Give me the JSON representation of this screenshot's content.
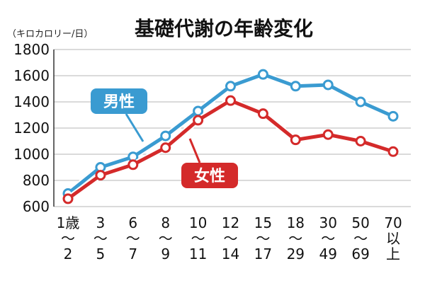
{
  "chart_data": {
    "type": "line",
    "title": "基礎代謝の年齢変化",
    "unit_label": "（キロカロリー/日）",
    "ylim": [
      600,
      1800
    ],
    "yticks": [
      600,
      800,
      1000,
      1200,
      1400,
      1600,
      1800
    ],
    "grid": true,
    "categories": [
      [
        "1歳",
        "〜",
        "2"
      ],
      [
        "3",
        "〜",
        "5"
      ],
      [
        "6",
        "〜",
        "7"
      ],
      [
        "8",
        "〜",
        "9"
      ],
      [
        "10",
        "〜",
        "11"
      ],
      [
        "12",
        "〜",
        "14"
      ],
      [
        "15",
        "〜",
        "17"
      ],
      [
        "18",
        "〜",
        "29"
      ],
      [
        "30",
        "〜",
        "49"
      ],
      [
        "50",
        "〜",
        "69"
      ],
      [
        "70",
        "以",
        "上"
      ]
    ],
    "series": [
      {
        "name": "男性",
        "color": "#3a9bd1",
        "values": [
          700,
          900,
          980,
          1140,
          1330,
          1520,
          1610,
          1520,
          1530,
          1400,
          1290
        ]
      },
      {
        "name": "女性",
        "color": "#d42a2a",
        "values": [
          660,
          840,
          920,
          1050,
          1260,
          1410,
          1310,
          1110,
          1150,
          1100,
          1020
        ]
      }
    ]
  }
}
